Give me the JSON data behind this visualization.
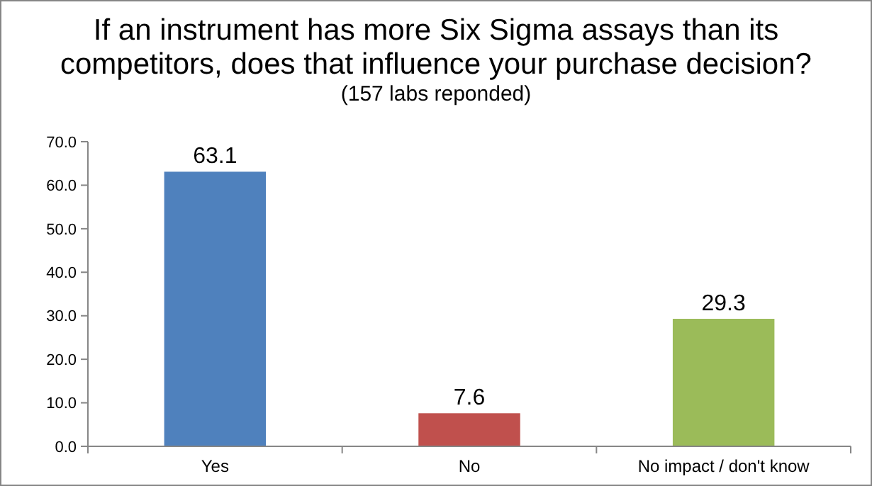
{
  "chart_data": {
    "type": "bar",
    "title": "If an instrument has more Six Sigma assays than its competitors, does that influence your purchase decision?",
    "subtitle": "(157 labs reponded)",
    "categories": [
      "Yes",
      "No",
      "No impact / don't know"
    ],
    "values": [
      63.1,
      7.6,
      29.3
    ],
    "colors": [
      "#4f81bd",
      "#c0504d",
      "#9bbb59"
    ],
    "ylim": [
      0,
      70
    ],
    "yticks": [
      {
        "value": 0,
        "label": "0.0"
      },
      {
        "value": 10,
        "label": "10.0"
      },
      {
        "value": 20,
        "label": "20.0"
      },
      {
        "value": 30,
        "label": "30.0"
      },
      {
        "value": 40,
        "label": "40.0"
      },
      {
        "value": 50,
        "label": "50.0"
      },
      {
        "value": 60,
        "label": "60.0"
      },
      {
        "value": 70,
        "label": "70.0"
      }
    ],
    "data_labels": true
  }
}
